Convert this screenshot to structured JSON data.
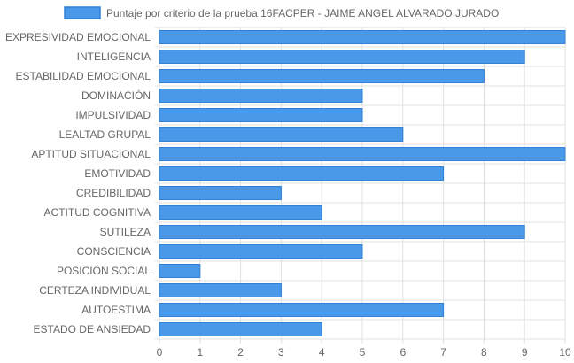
{
  "chart_data": {
    "type": "bar",
    "orientation": "horizontal",
    "categories": [
      "EXPRESIVIDAD EMOCIONAL",
      "INTELIGENCIA",
      "ESTABILIDAD EMOCIONAL",
      "DOMINACIÓN",
      "IMPULSIVIDAD",
      "LEALTAD GRUPAL",
      "APTITUD SITUACIONAL",
      "EMOTIVIDAD",
      "CREDIBILIDAD",
      "ACTITUD COGNITIVA",
      "SUTILEZA",
      "CONSCIENCIA",
      "POSICIÓN SOCIAL",
      "CERTEZA INDIVIDUAL",
      "AUTOESTIMA",
      "ESTADO DE ANSIEDAD"
    ],
    "series": [
      {
        "name": "Puntaje por criterio de la prueba 16FACPER - JAIME ANGEL ALVARADO JURADO",
        "values": [
          10,
          9,
          8,
          5,
          5,
          6,
          10,
          7,
          3,
          4,
          9,
          5,
          1,
          3,
          7,
          4
        ]
      }
    ],
    "xticks": [
      "0",
      "1",
      "2",
      "3",
      "4",
      "5",
      "6",
      "7",
      "8",
      "9",
      "10"
    ],
    "xlim": [
      0,
      10
    ],
    "grid": true,
    "legend_position": "top",
    "colors": {
      "bar_fill": "#4a98e8",
      "bar_stroke": "#2f7fd6",
      "grid": "#e0e0e0",
      "text": "#666666"
    }
  }
}
